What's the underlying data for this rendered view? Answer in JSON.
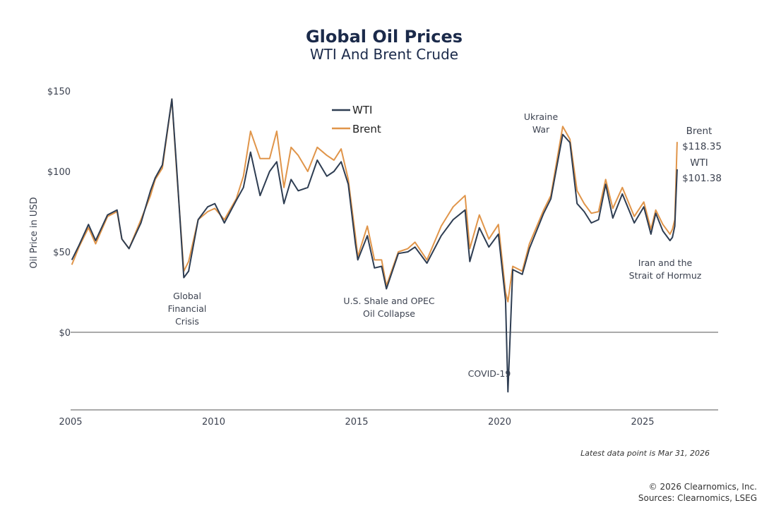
{
  "chart_data": {
    "type": "line",
    "title": "Global Oil Prices",
    "subtitle": "WTI And Brent Crude",
    "ylabel": "Oil Price in USD",
    "xlabel": "",
    "ylim": [
      -40,
      150
    ],
    "xlim": [
      2005,
      2027.6
    ],
    "y_ticks": [
      "$150",
      "$100",
      "$50",
      "$0"
    ],
    "y_tick_values": [
      150,
      100,
      50,
      0
    ],
    "x_ticks": [
      "2005",
      "2010",
      "2015",
      "2020",
      "2025"
    ],
    "x_tick_values": [
      2005,
      2010,
      2015,
      2020,
      2025
    ],
    "grid": false,
    "legend_position": "top-center",
    "colors": {
      "WTI": "#2e3d52",
      "Brent": "#e0954a",
      "title": "#1b2a4a"
    },
    "dates": [
      "2005-01",
      "2005-04",
      "2005-08",
      "2005-11",
      "2006-04",
      "2006-08",
      "2006-10",
      "2007-01",
      "2007-06",
      "2007-10",
      "2007-12",
      "2008-03",
      "2008-07",
      "2008-09",
      "2008-12",
      "2009-02",
      "2009-06",
      "2009-10",
      "2010-01",
      "2010-05",
      "2010-10",
      "2011-01",
      "2011-04",
      "2011-08",
      "2011-12",
      "2012-03",
      "2012-06",
      "2012-09",
      "2012-12",
      "2013-04",
      "2013-08",
      "2013-12",
      "2014-03",
      "2014-06",
      "2014-09",
      "2014-12",
      "2015-01",
      "2015-05",
      "2015-08",
      "2015-11",
      "2016-01",
      "2016-06",
      "2016-10",
      "2017-01",
      "2017-06",
      "2017-12",
      "2018-05",
      "2018-10",
      "2018-12",
      "2019-04",
      "2019-08",
      "2019-12",
      "2020-03",
      "2020-04",
      "2020-06",
      "2020-10",
      "2021-01",
      "2021-07",
      "2021-10",
      "2022-03",
      "2022-06",
      "2022-09",
      "2022-12",
      "2023-03",
      "2023-06",
      "2023-09",
      "2023-12",
      "2024-04",
      "2024-09",
      "2025-01",
      "2025-04",
      "2025-06",
      "2025-09",
      "2025-12",
      "2026-01",
      "2026-02",
      "2026-03"
    ],
    "series": [
      {
        "name": "WTI",
        "values": [
          45,
          54,
          67,
          57,
          73,
          76,
          58,
          52,
          68,
          88,
          96,
          104,
          145,
          102,
          34,
          38,
          70,
          78,
          80,
          68,
          82,
          90,
          112,
          85,
          100,
          106,
          80,
          95,
          88,
          90,
          107,
          97,
          100,
          106,
          92,
          55,
          45,
          60,
          40,
          41,
          27,
          49,
          50,
          53,
          43,
          60,
          70,
          76,
          44,
          65,
          53,
          61,
          20,
          -37,
          39,
          36,
          52,
          74,
          83,
          123,
          118,
          80,
          75,
          68,
          70,
          92,
          71,
          86,
          68,
          78,
          61,
          74,
          63,
          57,
          59,
          66,
          101.38
        ]
      },
      {
        "name": "Brent",
        "values": [
          42,
          53,
          65,
          55,
          72,
          75,
          58,
          52,
          70,
          85,
          95,
          102,
          145,
          100,
          38,
          44,
          70,
          75,
          77,
          70,
          83,
          97,
          125,
          108,
          108,
          125,
          90,
          115,
          110,
          100,
          115,
          110,
          107,
          114,
          95,
          60,
          47,
          66,
          45,
          45,
          29,
          50,
          52,
          56,
          45,
          66,
          78,
          85,
          52,
          73,
          58,
          67,
          25,
          19,
          41,
          38,
          55,
          76,
          85,
          128,
          120,
          88,
          80,
          74,
          75,
          95,
          77,
          90,
          72,
          81,
          64,
          76,
          67,
          61,
          64,
          70,
          118.35
        ]
      }
    ],
    "annotations": [
      {
        "lines": [
          "Global",
          "Financial",
          "Crisis"
        ]
      },
      {
        "lines": [
          "U.S. Shale and OPEC",
          "Oil Collapse"
        ]
      },
      {
        "lines": [
          "COVID-19"
        ]
      },
      {
        "lines": [
          "Ukraine",
          "War"
        ]
      },
      {
        "lines": [
          "Iran and the",
          "Strait of Hormuz"
        ]
      }
    ],
    "end_labels": {
      "brent_name": "Brent",
      "brent_value": "$118.35",
      "wti_name": "WTI",
      "wti_value": "$101.38"
    }
  },
  "footer": {
    "note": "Latest data point is Mar 31, 2026",
    "copyright": "© 2026 Clearnomics, Inc.",
    "sources": "Sources: Clearnomics, LSEG"
  }
}
